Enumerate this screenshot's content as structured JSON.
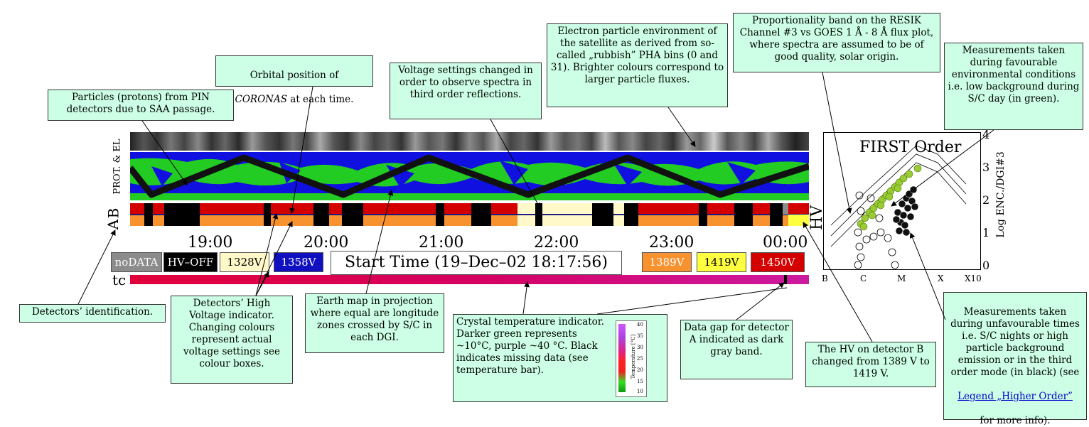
{
  "panel": {
    "labels": {
      "prot_el": "PROT. & EL",
      "b": "B",
      "a": "A",
      "tc": "tc",
      "hv": "HV"
    },
    "time_ticks": [
      "19:00",
      "20:00",
      "21:00",
      "22:00",
      "23:00",
      "00:00"
    ],
    "start_time": "Start Time (19–Dec–02 18:17:56)",
    "voltage_boxes": [
      {
        "label": "noDATA",
        "color": "#8c8c8c",
        "text_color": "#ffffff"
      },
      {
        "label": "HV–OFF",
        "color": "#000000",
        "text_color": "#ffffff"
      },
      {
        "label": "1328V",
        "color": "#fff8c8",
        "text_color": "#000000"
      },
      {
        "label": "1358V",
        "color": "#1010c0",
        "text_color": "#ffffff"
      },
      {
        "label": "1389V",
        "color": "#f7922e",
        "text_color": "#ffffff"
      },
      {
        "label": "1419V",
        "color": "#ffff40",
        "text_color": "#000000"
      },
      {
        "label": "1450V",
        "color": "#d40000",
        "text_color": "#ffffff"
      }
    ],
    "colors": {
      "map_blue": "#1010e0",
      "map_green": "#22cc22",
      "hv_red": "#d40000",
      "hv_orange": "#f7922e",
      "hv_pale": "#fff8c8",
      "tc_start": "#e0003a",
      "tc_end": "#cc1aa0"
    }
  },
  "scatter": {
    "title": "FIRST Order",
    "y_axis_label": "Log ENC./DGI#3",
    "y_ticks": [
      "0",
      "1",
      "2",
      "3",
      "4"
    ],
    "x_ticks": [
      "B",
      "C",
      "M",
      "X",
      "X10"
    ],
    "favourable_color": "#99cc33"
  },
  "temperature_bar": {
    "label": "Temperature [°C]",
    "ticks": [
      "40",
      "35",
      "30",
      "25",
      "20",
      "15",
      "10"
    ]
  },
  "annotations": {
    "pin_particles": "Particles (protons) from PIN detectors due to SAA passage.",
    "orbital_position_1": "Orbital position of",
    "orbital_position_2": "CORONAS",
    "orbital_position_3": " at each time.",
    "voltage_third_order": "Voltage settings changed in order to observe spectra in third order reflections.",
    "electron_environment": "Electron particle environment of the satellite as derived from so-called „rubbish” PHA bins (0 and 31). Brighter colours correspond to larger particle fluxes.",
    "proportionality_band": "Proportionality band on the RESIK Channel #3 vs GOES 1 Å - 8 Å  flux plot, where spectra are assumed to be of good quality, solar origin.",
    "favourable_measurements": "Measurements taken during favourable environmental conditions i.e. low background during S/C day (in green).",
    "detectors_id": "Detectors’ identification.",
    "hv_indicator": "Detectors’ High Voltage  indicator. Changing colours represent actual voltage  settings see colour boxes.",
    "earth_map": "Earth map in projection where equal are longitude zones crossed by S/C in each DGI.",
    "crystal_temperature": "Crystal temperature indicator. Darker green represents ~10°C, purple ~40 °C. Black indicates missing data (see temperature bar).",
    "data_gap": "Data gap for detector A indicated as dark gray band.",
    "hv_change_b": "The HV on detector B changed from 1389 V to 1419 V.",
    "unfavourable_measurements": "Measurements taken during unfavourable times i.e. S/C nights or high particle background emission or in    the third order mode (in black)  (see",
    "higher_order_link": "Legend „Higher Order”",
    "more_info": "for more info)."
  }
}
